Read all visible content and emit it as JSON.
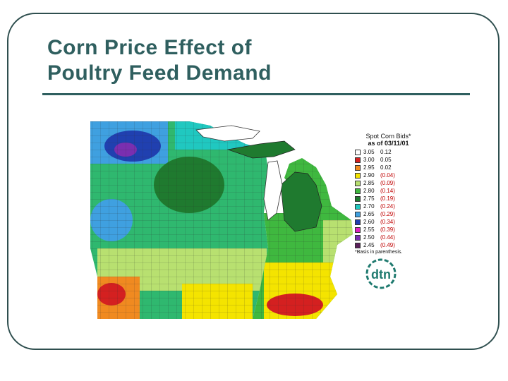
{
  "slide": {
    "title_line1": "Corn Price Effect of",
    "title_line2": "Poultry Feed Demand"
  },
  "legend": {
    "title_line1": "Spot Corn Bids*",
    "title_line2": "as of 03/11/01",
    "rows": [
      {
        "price": "3.05",
        "basis": "0.12",
        "color": "#ffffff",
        "negative": false
      },
      {
        "price": "3.00",
        "basis": "0.05",
        "color": "#d42020",
        "negative": false
      },
      {
        "price": "2.95",
        "basis": "0.02",
        "color": "#f08a20",
        "negative": false
      },
      {
        "price": "2.90",
        "basis": "(0.04)",
        "color": "#f4e400",
        "negative": true
      },
      {
        "price": "2.85",
        "basis": "(0.09)",
        "color": "#b8e070",
        "negative": true
      },
      {
        "price": "2.80",
        "basis": "(0.14)",
        "color": "#3fb83f",
        "negative": true
      },
      {
        "price": "2.75",
        "basis": "(0.19)",
        "color": "#1f7a2f",
        "negative": true
      },
      {
        "price": "2.70",
        "basis": "(0.24)",
        "color": "#20c8c0",
        "negative": true
      },
      {
        "price": "2.65",
        "basis": "(0.29)",
        "color": "#3fa0e0",
        "negative": true
      },
      {
        "price": "2.60",
        "basis": "(0.34)",
        "color": "#1f3fb0",
        "negative": true
      },
      {
        "price": "2.55",
        "basis": "(0.39)",
        "color": "#e020c0",
        "negative": true
      },
      {
        "price": "2.50",
        "basis": "(0.44)",
        "color": "#7a2fb0",
        "negative": true
      },
      {
        "price": "2.45",
        "basis": "(0.49)",
        "color": "#5a1f5a",
        "negative": true
      }
    ],
    "footnote": "*Basis in parenthesis."
  },
  "logo": {
    "text": "dtn",
    "color": "#1f7a6f"
  }
}
